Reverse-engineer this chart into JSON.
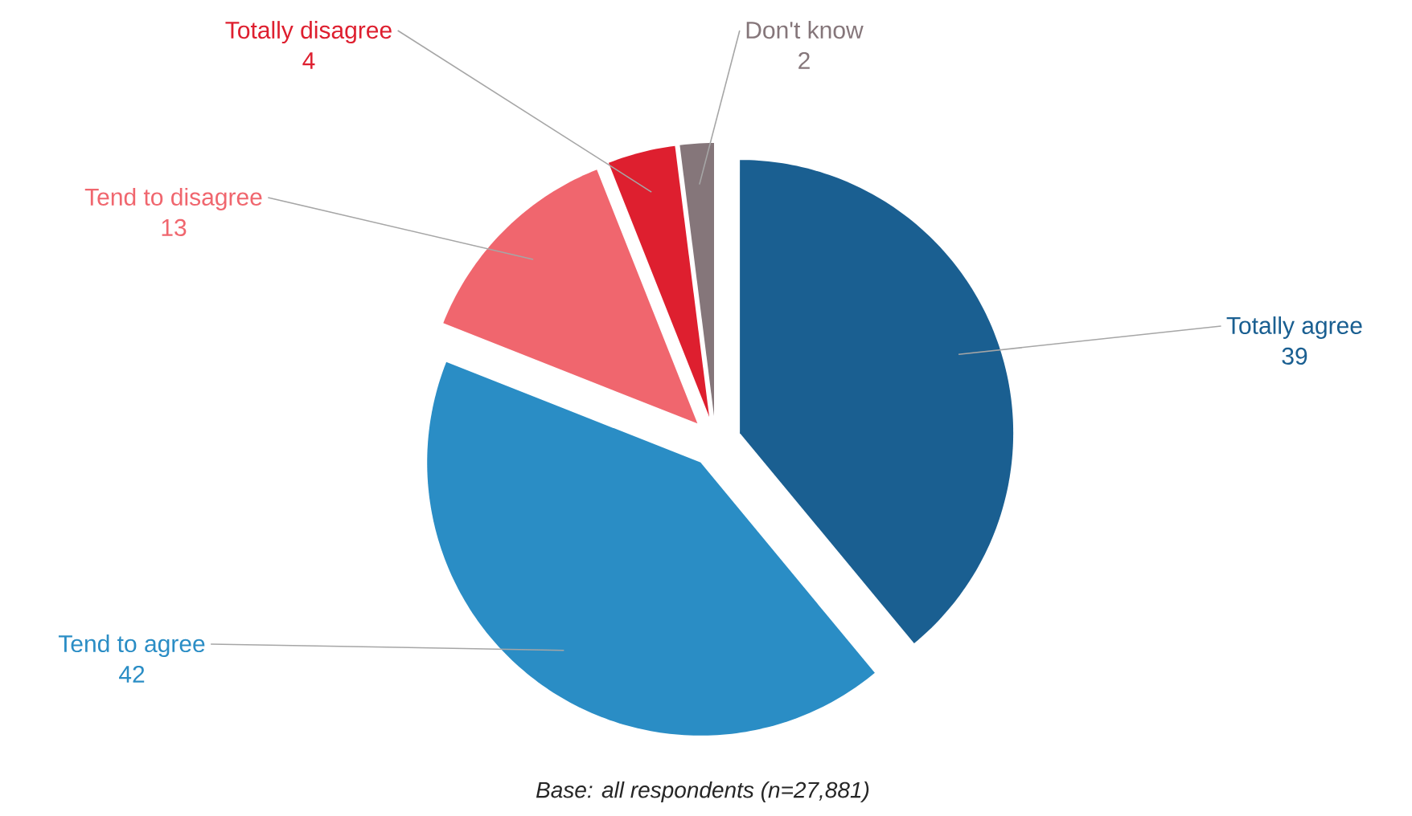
{
  "chart_data": {
    "type": "pie",
    "categories": [
      "Totally agree",
      "Tend to agree",
      "Tend to disagree",
      "Totally disagree",
      "Don't know"
    ],
    "values": [
      39,
      42,
      13,
      4,
      2
    ],
    "colors": [
      "#1a5f91",
      "#2a8dc5",
      "#f0666e",
      "#de1f2f",
      "#85767a"
    ],
    "data_labels": true,
    "annotations": [
      "*Base: all respondents (n=27,881)*"
    ]
  }
}
